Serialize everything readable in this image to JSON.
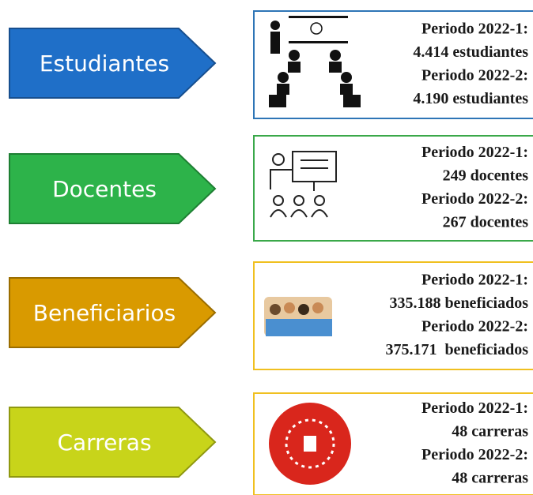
{
  "items": [
    {
      "label": "Estudiantes",
      "lines": [
        "Periodo 2022-1:",
        "4.414 estudiantes",
        "Periodo 2022-2:",
        "4.190 estudiantes"
      ]
    },
    {
      "label": "Docentes",
      "lines": [
        "Periodo 2022-1:",
        "249 docentes",
        "Periodo 2022-2:",
        "267 docentes"
      ]
    },
    {
      "label": "Beneficiarios",
      "lines": [
        "Periodo 2022-1:",
        "335.188 beneficiados",
        "Periodo 2022-2:",
        "375.171  beneficiados"
      ]
    },
    {
      "label": "Carreras",
      "lines": [
        "Periodo 2022-1:",
        "48 carreras",
        "Periodo 2022-2:",
        "48 carreras"
      ]
    }
  ]
}
